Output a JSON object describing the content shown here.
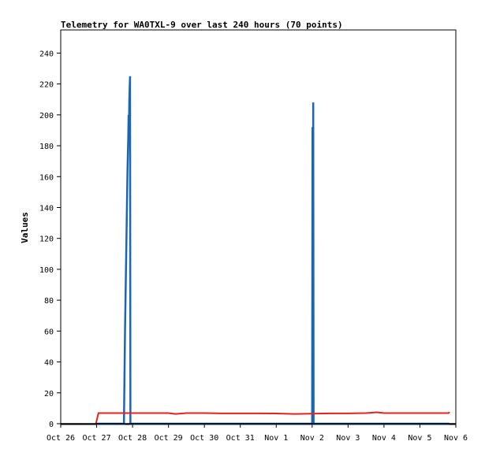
{
  "chart_data": {
    "type": "line",
    "title": "Telemetry for WA0TXL-9 over last 240 hours (70 points)",
    "xlabel": "",
    "ylabel": "Values",
    "x_ticks": [
      "Oct 26",
      "Oct 27",
      "Oct 28",
      "Oct 29",
      "Oct 30",
      "Oct 31",
      "Nov 1",
      "Nov 2",
      "Nov 3",
      "Nov 4",
      "Nov 5",
      "Nov 6"
    ],
    "xlim": [
      0,
      11
    ],
    "ylim": [
      0,
      255
    ],
    "y_ticks": [
      0,
      20,
      40,
      60,
      80,
      100,
      120,
      140,
      160,
      180,
      200,
      220,
      240
    ],
    "grid": false,
    "legend": "none",
    "series": [
      {
        "color": "#1a66b5",
        "x": [
          0.98,
          1.76,
          1.77,
          1.78,
          1.79,
          1.8,
          1.81,
          1.82,
          1.83,
          1.84,
          1.85,
          1.86,
          1.87,
          1.88,
          1.89,
          1.9,
          1.91,
          1.92,
          1.93,
          1.94,
          1.95,
          1.96,
          1.97,
          1.98,
          1.99,
          2.0,
          2.01,
          7.0,
          7.01,
          7.02,
          7.03,
          7.04,
          7.05,
          7.06,
          10.82
        ],
        "y": [
          0,
          0,
          20,
          40,
          60,
          75,
          90,
          105,
          120,
          135,
          150,
          165,
          175,
          185,
          200,
          190,
          210,
          218,
          225,
          0,
          0,
          0,
          0,
          0,
          0,
          0,
          0,
          0,
          192,
          0,
          208,
          0,
          0,
          0,
          0
        ]
      },
      {
        "color": "#e8201c",
        "x": [
          0.98,
          1.05,
          1.5,
          2.0,
          2.5,
          3.0,
          3.2,
          3.5,
          4.0,
          4.5,
          5.0,
          5.5,
          6.0,
          6.5,
          7.0,
          7.5,
          8.0,
          8.5,
          8.8,
          9.0,
          9.5,
          10.0,
          10.5,
          10.8,
          10.82
        ],
        "y": [
          0,
          6.9,
          6.9,
          6.9,
          6.9,
          6.9,
          6.3,
          6.9,
          6.9,
          6.7,
          6.7,
          6.7,
          6.6,
          6.3,
          6.5,
          6.7,
          6.7,
          6.9,
          7.4,
          6.9,
          6.9,
          6.9,
          6.9,
          6.9,
          7.6
        ]
      }
    ]
  }
}
